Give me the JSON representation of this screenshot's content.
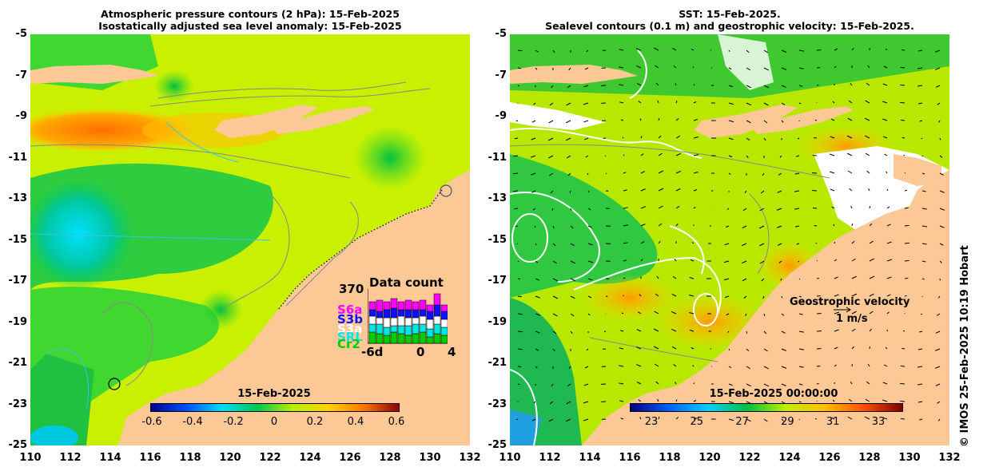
{
  "left_panel": {
    "title_line1": "Atmospheric pressure contours (2 hPa): 15-Feb-2025",
    "title_line2": "Isostatically adjusted sea level anomaly: 15-Feb-2025",
    "colorbar_date": "15-Feb-2025",
    "colorbar_ticks": [
      "-0.6",
      "-0.4",
      "-0.2",
      "0",
      "0.2",
      "0.4",
      "0.6"
    ],
    "data_count": {
      "title": "Data count",
      "max_label": "370",
      "x_labels": [
        "-6d",
        "0",
        "4"
      ],
      "series": [
        {
          "name": "S6a",
          "color": "#ff00ff"
        },
        {
          "name": "S3b",
          "color": "#1010ff"
        },
        {
          "name": "S3a",
          "color": "#ffffff"
        },
        {
          "name": "SRL",
          "color": "#00e5e5"
        },
        {
          "name": "Cr2",
          "color": "#00cc00"
        }
      ]
    }
  },
  "right_panel": {
    "title_line1": "SST: 15-Feb-2025.",
    "title_line2": "Sealevel contours (0.1 m) and geostrophic velocity: 15-Feb-2025.",
    "colorbar_date": "15-Feb-2025 00:00:00",
    "colorbar_ticks": [
      "23",
      "25",
      "27",
      "29",
      "31",
      "33"
    ],
    "velocity_label": "Geostrophic velocity",
    "velocity_scale": "1 m/s"
  },
  "axes": {
    "y_ticks": [
      "-5",
      "-7",
      "-9",
      "-11",
      "-13",
      "-15",
      "-17",
      "-19",
      "-21",
      "-23",
      "-25"
    ],
    "x_ticks": [
      "110",
      "112",
      "114",
      "116",
      "118",
      "120",
      "122",
      "124",
      "126",
      "128",
      "130",
      "132"
    ]
  },
  "credit": "© IMOS 25-Feb-2025 10:19 Hobart",
  "colors": {
    "land": "#fbc896",
    "anomaly_stops": [
      "#00008c",
      "#0050ff",
      "#00dcff",
      "#00c850",
      "#b4f000",
      "#ffd200",
      "#ff7800",
      "#8c0000"
    ],
    "sst_stops": [
      "#000080",
      "#0060ff",
      "#00d0ff",
      "#00c040",
      "#c0f000",
      "#ffc000",
      "#ff5000",
      "#800000"
    ]
  }
}
